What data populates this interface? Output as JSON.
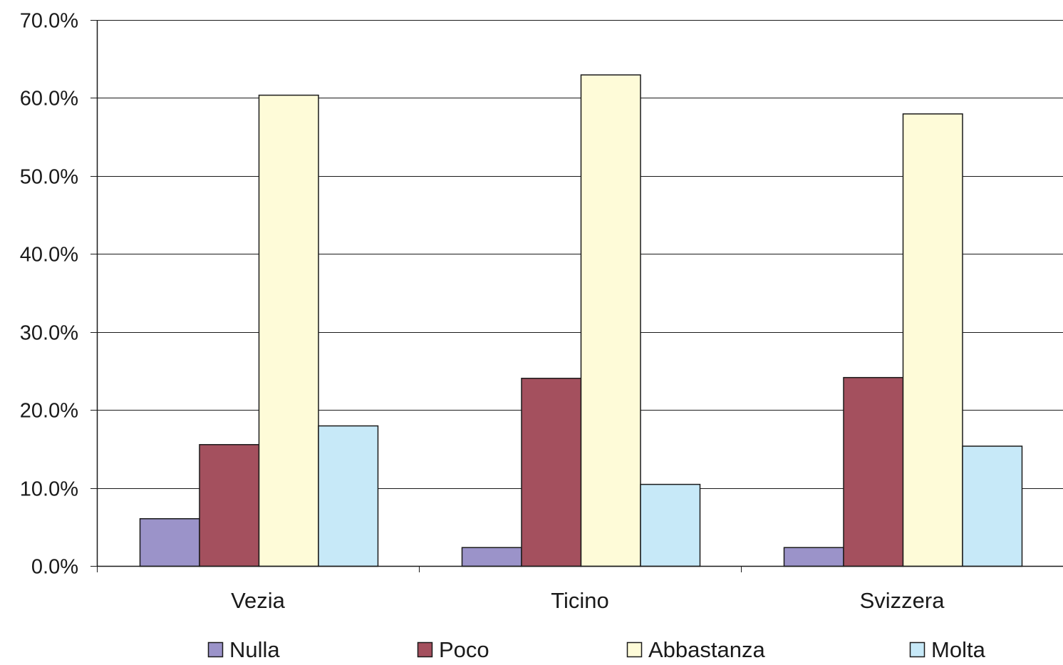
{
  "chart_data": {
    "type": "bar",
    "categories": [
      "Vezia",
      "Ticino",
      "Svizzera"
    ],
    "series": [
      {
        "name": "Nulla",
        "values": [
          6.1,
          2.4,
          2.4
        ],
        "color": "#9b93c9"
      },
      {
        "name": "Poco",
        "values": [
          15.6,
          24.1,
          24.2
        ],
        "color": "#a4505e"
      },
      {
        "name": "Abbastanza",
        "values": [
          60.4,
          63.0,
          58.0
        ],
        "color": "#fefbd8"
      },
      {
        "name": "Molta",
        "values": [
          18.0,
          10.5,
          15.4
        ],
        "color": "#c7e9f8"
      }
    ],
    "ylim": [
      0,
      70
    ],
    "yticks": [
      "0.0%",
      "10.0%",
      "20.0%",
      "30.0%",
      "40.0%",
      "50.0%",
      "60.0%",
      "70.0%"
    ],
    "grid": true,
    "legend": "bottom",
    "title": "",
    "xlabel": "",
    "ylabel": ""
  }
}
